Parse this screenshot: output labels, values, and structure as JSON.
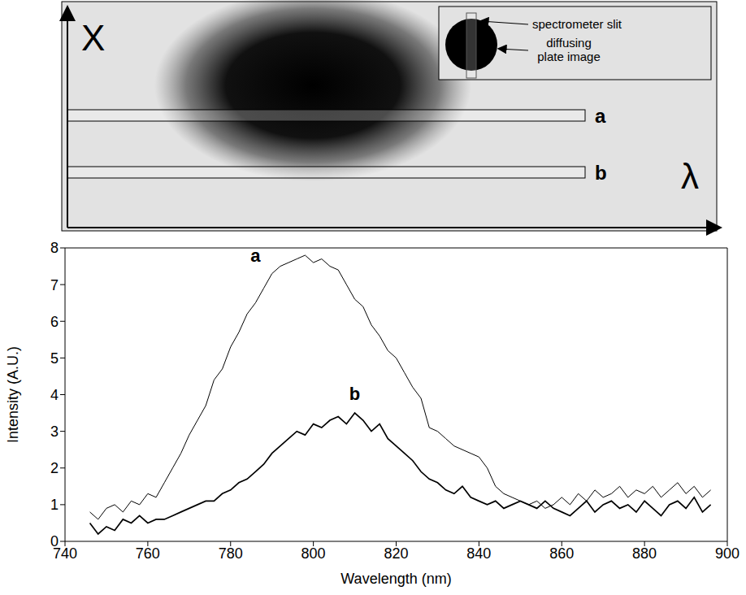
{
  "image_panel": {
    "y_axis_label": "X",
    "x_axis_label": "λ",
    "slit_labels": [
      "a",
      "b"
    ],
    "inset": {
      "slit": "spectrometer slit",
      "plate": "diffusing plate image"
    }
  },
  "chart_data": {
    "type": "line",
    "xlabel": "Wavelength  (nm)",
    "ylabel": "Intensity  (A.U.)",
    "x": [
      746,
      748,
      750,
      752,
      754,
      756,
      758,
      760,
      762,
      764,
      766,
      768,
      770,
      772,
      774,
      776,
      778,
      780,
      782,
      784,
      786,
      788,
      790,
      792,
      794,
      796,
      798,
      800,
      802,
      804,
      806,
      808,
      810,
      812,
      814,
      816,
      818,
      820,
      822,
      824,
      826,
      828,
      830,
      832,
      834,
      836,
      838,
      840,
      842,
      844,
      846,
      848,
      850,
      852,
      854,
      856,
      858,
      860,
      862,
      864,
      866,
      868,
      870,
      872,
      874,
      876,
      878,
      880,
      882,
      884,
      886,
      888,
      890,
      892,
      894,
      896
    ],
    "series": [
      {
        "name": "a",
        "color": "#000000",
        "values": [
          0.8,
          0.6,
          0.9,
          1.0,
          0.8,
          1.1,
          1.0,
          1.3,
          1.2,
          1.6,
          2.0,
          2.4,
          2.9,
          3.3,
          3.7,
          4.4,
          4.7,
          5.3,
          5.7,
          6.2,
          6.5,
          6.9,
          7.3,
          7.5,
          7.6,
          7.7,
          7.8,
          7.6,
          7.7,
          7.5,
          7.4,
          7.0,
          6.6,
          6.4,
          5.9,
          5.6,
          5.2,
          5.0,
          4.6,
          4.2,
          3.9,
          3.1,
          3.0,
          2.8,
          2.6,
          2.5,
          2.4,
          2.3,
          2.0,
          1.5,
          1.3,
          1.2,
          1.1,
          1.0,
          1.1,
          0.9,
          1.0,
          1.2,
          1.0,
          1.3,
          1.1,
          1.4,
          1.2,
          1.3,
          1.5,
          1.2,
          1.4,
          1.3,
          1.5,
          1.2,
          1.4,
          1.6,
          1.3,
          1.5,
          1.2,
          1.4
        ]
      },
      {
        "name": "b",
        "color": "#000000",
        "values": [
          0.5,
          0.2,
          0.4,
          0.3,
          0.6,
          0.5,
          0.7,
          0.5,
          0.6,
          0.6,
          0.7,
          0.8,
          0.9,
          1.0,
          1.1,
          1.1,
          1.3,
          1.4,
          1.6,
          1.7,
          1.9,
          2.1,
          2.4,
          2.6,
          2.8,
          3.0,
          2.9,
          3.2,
          3.1,
          3.3,
          3.4,
          3.2,
          3.5,
          3.3,
          3.0,
          3.2,
          2.8,
          2.6,
          2.4,
          2.2,
          1.9,
          1.7,
          1.6,
          1.4,
          1.3,
          1.5,
          1.2,
          1.1,
          1.0,
          1.1,
          0.9,
          1.0,
          1.1,
          1.0,
          0.9,
          1.1,
          0.9,
          0.8,
          0.7,
          0.9,
          1.1,
          0.8,
          1.0,
          1.1,
          0.9,
          1.0,
          0.8,
          1.1,
          0.9,
          0.7,
          1.0,
          1.1,
          0.9,
          1.2,
          0.8,
          1.0
        ]
      }
    ],
    "xlim": [
      740,
      900
    ],
    "xticks": [
      740,
      760,
      780,
      800,
      820,
      840,
      860,
      880,
      900
    ],
    "ylim": [
      0,
      8
    ],
    "yticks": [
      0,
      1,
      2,
      3,
      4,
      5,
      6,
      7,
      8
    ],
    "grid": false
  }
}
